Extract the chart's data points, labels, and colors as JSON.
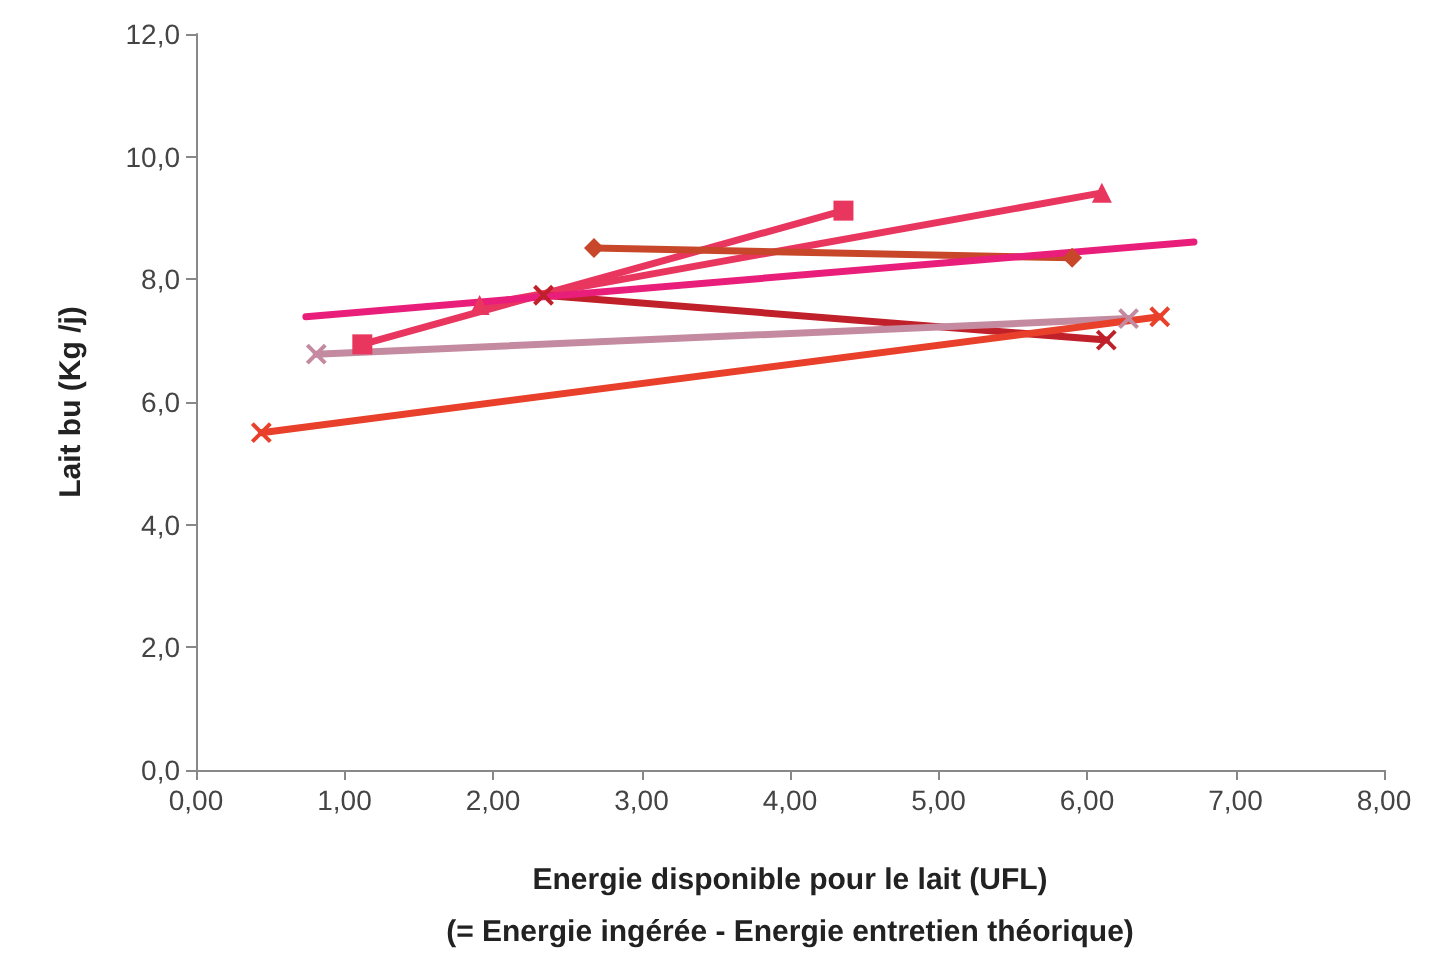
{
  "chart_data": {
    "type": "line",
    "xlabel": "Energie disponible pour le lait (UFL)\n(= Energie ingérée - Energie entretien théorique)",
    "ylabel": "Lait bu (Kg /j)",
    "series": [
      {
        "color": "#e8365f",
        "marker": "square",
        "x": [
          1.12,
          4.36
        ],
        "values": [
          6.94,
          9.12
        ]
      },
      {
        "color": "#e8365f",
        "marker": "triangle",
        "x": [
          1.91,
          6.1
        ],
        "values": [
          7.58,
          9.41
        ]
      },
      {
        "color": "#c8472a",
        "marker": "diamond",
        "x": [
          2.68,
          5.9
        ],
        "values": [
          8.51,
          8.35
        ]
      },
      {
        "color": "#c0202a",
        "marker": "cross",
        "x": [
          2.34,
          6.13
        ],
        "values": [
          7.74,
          7.01
        ]
      },
      {
        "color": "#e91e7a",
        "marker": "none",
        "x": [
          0.74,
          6.72
        ],
        "values": [
          7.39,
          8.61
        ]
      },
      {
        "color": "#c48aa0",
        "marker": "cross",
        "x": [
          0.81,
          6.28
        ],
        "values": [
          6.78,
          7.36
        ]
      },
      {
        "color": "#e8402a",
        "marker": "cross",
        "x": [
          0.44,
          6.49
        ],
        "values": [
          5.5,
          7.39
        ]
      }
    ],
    "xlim": [
      0,
      8
    ],
    "xticks": [
      {
        "value": 0,
        "label": "0,00"
      },
      {
        "value": 1,
        "label": "1,00"
      },
      {
        "value": 2,
        "label": "2,00"
      },
      {
        "value": 3,
        "label": "3,00"
      },
      {
        "value": 4,
        "label": "4,00"
      },
      {
        "value": 5,
        "label": "5,00"
      },
      {
        "value": 6,
        "label": "6,00"
      },
      {
        "value": 7,
        "label": "7,00"
      },
      {
        "value": 8,
        "label": "8,00"
      }
    ],
    "ylim": [
      0,
      12
    ],
    "yticks": [
      {
        "value": 0,
        "label": "0,0"
      },
      {
        "value": 2,
        "label": "2,0"
      },
      {
        "value": 4,
        "label": "4,0"
      },
      {
        "value": 6,
        "label": "6,0"
      },
      {
        "value": 8,
        "label": "8,0"
      },
      {
        "value": 10,
        "label": "10,0"
      },
      {
        "value": 12,
        "label": "12,0"
      }
    ],
    "grid": false
  }
}
